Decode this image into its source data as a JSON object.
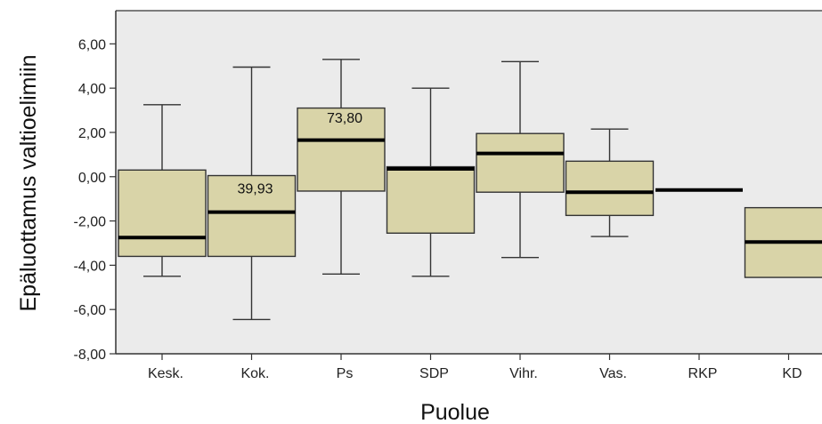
{
  "chart_data": {
    "type": "boxplot",
    "xlabel": "Puolue",
    "ylabel": "Epäluottamus valtioelimiin",
    "ylim": [
      -8,
      7.5
    ],
    "yticks": [
      -8,
      -6,
      -4,
      -2,
      0,
      2,
      4,
      6
    ],
    "ytick_labels": [
      "-8,00",
      "-6,00",
      "-4,00",
      "-2,00",
      "0,00",
      "2,00",
      "4,00",
      "6,00"
    ],
    "grid": false,
    "background_color": "#ebebeb",
    "box_color": "#d9d4a8",
    "categories": [
      "Kesk.",
      "Kok.",
      "Ps",
      "SDP",
      "Vihr.",
      "Vas.",
      "RKP",
      "KD"
    ],
    "boxes": [
      {
        "category": "Kesk.",
        "whisker_low": -4.5,
        "q1": -3.6,
        "median": -2.75,
        "q3": 0.3,
        "whisker_high": 3.25
      },
      {
        "category": "Kok.",
        "whisker_low": -6.45,
        "q1": -3.6,
        "median": -1.6,
        "q3": 0.05,
        "whisker_high": 4.95
      },
      {
        "category": "Ps",
        "whisker_low": -4.4,
        "q1": -0.65,
        "median": 1.65,
        "q3": 3.1,
        "whisker_high": 5.3
      },
      {
        "category": "SDP",
        "whisker_low": -4.5,
        "q1": -2.55,
        "median": 0.35,
        "q3": 0.45,
        "whisker_high": 4.0
      },
      {
        "category": "Vihr.",
        "whisker_low": -3.65,
        "q1": -0.7,
        "median": 1.05,
        "q3": 1.95,
        "whisker_high": 5.2
      },
      {
        "category": "Vas.",
        "whisker_low": -2.7,
        "q1": -1.75,
        "median": -0.7,
        "q3": 0.7,
        "whisker_high": 2.15
      },
      {
        "category": "RKP",
        "whisker_low": -0.6,
        "q1": -0.6,
        "median": -0.6,
        "q3": -0.6,
        "whisker_high": -0.6
      },
      {
        "category": "KD",
        "whisker_low": -4.55,
        "q1": -4.55,
        "median": -2.95,
        "q3": -1.4,
        "whisker_high": -1.4
      }
    ],
    "annotations": [
      {
        "category": "Kok.",
        "text": "39,93",
        "y": -0.75
      },
      {
        "category": "Ps",
        "text": "73,80",
        "y": 2.45
      }
    ]
  }
}
